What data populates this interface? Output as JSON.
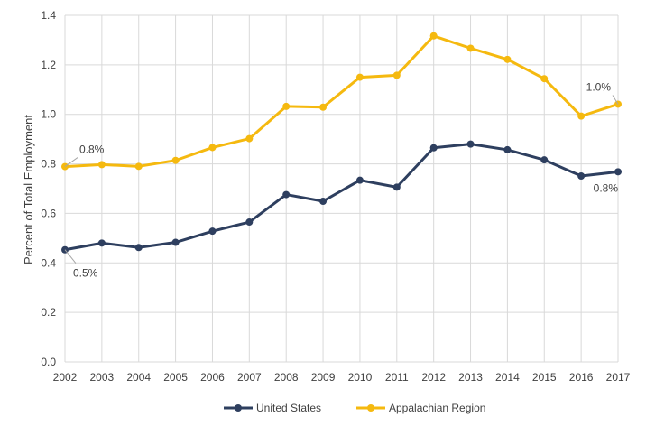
{
  "chart_data": {
    "type": "line",
    "ylabel": "Percent of Total Employment",
    "xlabel": "",
    "x": [
      "2002",
      "2003",
      "2004",
      "2005",
      "2006",
      "2007",
      "2008",
      "2009",
      "2010",
      "2011",
      "2012",
      "2013",
      "2014",
      "2015",
      "2016",
      "2017"
    ],
    "ylim": [
      0,
      1.4
    ],
    "yticks": [
      "0.0",
      "0.2",
      "0.4",
      "0.6",
      "0.8",
      "1.0",
      "1.2",
      "1.4"
    ],
    "grid": true,
    "legend_position": "bottom",
    "series": [
      {
        "name": "United States",
        "color": "#2e3f5f",
        "values": [
          0.453,
          0.48,
          0.462,
          0.483,
          0.528,
          0.565,
          0.676,
          0.649,
          0.734,
          0.706,
          0.865,
          0.88,
          0.857,
          0.816,
          0.751,
          0.768
        ]
      },
      {
        "name": "Appalachian Region",
        "color": "#f5b90f",
        "values": [
          0.789,
          0.797,
          0.79,
          0.814,
          0.866,
          0.902,
          1.032,
          1.029,
          1.15,
          1.158,
          1.317,
          1.267,
          1.222,
          1.144,
          0.993,
          1.041
        ]
      }
    ],
    "annotations": [
      {
        "text": "0.8%",
        "series": 1,
        "index": 0
      },
      {
        "text": "1.0%",
        "series": 1,
        "index": 15
      },
      {
        "text": "0.5%",
        "series": 0,
        "index": 0
      },
      {
        "text": "0.8%",
        "series": 0,
        "index": 15
      }
    ]
  }
}
